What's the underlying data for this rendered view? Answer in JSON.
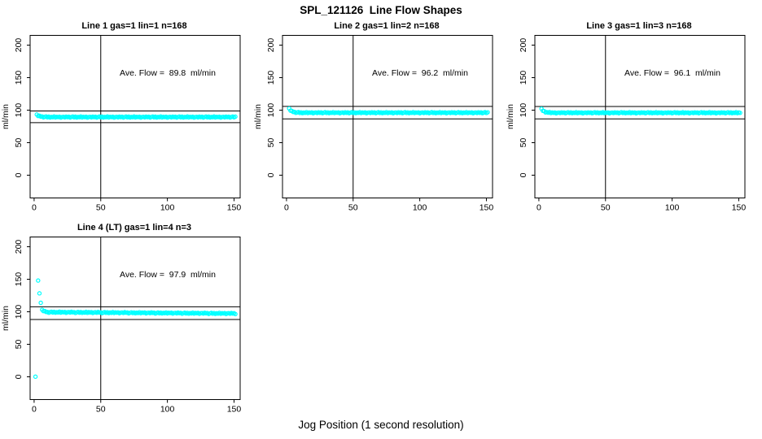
{
  "chart_data": {
    "type": "scatter",
    "title": "SPL_121126  Line Flow Shapes",
    "xlabel": "Jog Position (1 second resolution)",
    "ylabel": "ml/min",
    "x_ticks": [
      0,
      50,
      100,
      150
    ],
    "y_ticks": [
      0,
      50,
      100,
      150,
      200
    ],
    "xlim": [
      -3,
      154.6
    ],
    "ylim": [
      -35,
      215
    ],
    "grid": false,
    "marker_color": "#00FFFF",
    "axis_color": "#000000",
    "vline_x": 50,
    "annotation_pos": {
      "x": 100,
      "y": 155
    },
    "panels": [
      {
        "title": "Line 1 gas=1 lin=1 n=168",
        "ave_flow": 89.8,
        "annotation": "Ave. Flow =  89.8  ml/min",
        "hline_upper": 98.8,
        "hline_lower": 80.8,
        "x_start": 2,
        "x_step": 1,
        "y": [
          93.3,
          91.0,
          91.4,
          90.0,
          90.4,
          88.9,
          89.7,
          90.3,
          89.0,
          90.0,
          88.7,
          89.6,
          89.1,
          90.3,
          88.8,
          89.8,
          89.3,
          89.9,
          88.5,
          89.4,
          89.7,
          88.9,
          90.1,
          89.2,
          89.9,
          88.6,
          89.5,
          90.2,
          89.0,
          90.0,
          88.7,
          89.6,
          89.1,
          90.3,
          88.8,
          89.8,
          89.3,
          89.9,
          88.5,
          89.4,
          89.7,
          88.9,
          90.1,
          89.2,
          89.9,
          88.6,
          89.5,
          90.2,
          89.0,
          90.0,
          88.7,
          89.6,
          89.1,
          90.3,
          88.8,
          89.8,
          89.3,
          89.9,
          88.5,
          89.4,
          89.7,
          88.9,
          90.1,
          89.2,
          89.9,
          88.6,
          89.5,
          90.2,
          89.0,
          90.0,
          88.7,
          89.6,
          89.1,
          90.3,
          88.8,
          89.8,
          89.3,
          89.9,
          88.5,
          89.4,
          89.7,
          88.9,
          90.1,
          89.2,
          89.9,
          88.6,
          89.5,
          90.2,
          89.0,
          90.0,
          88.7,
          89.6,
          89.1,
          90.3,
          88.8,
          89.8,
          89.3,
          89.9,
          88.5,
          89.4,
          89.7,
          88.9,
          90.1,
          89.2,
          89.9,
          88.6,
          89.5,
          90.2,
          89.0,
          90.0,
          88.7,
          89.6,
          89.1,
          90.3,
          88.8,
          89.8,
          89.3,
          89.9,
          88.5,
          89.4,
          89.7,
          88.9,
          90.1,
          89.2,
          89.9,
          88.6,
          89.5,
          90.2,
          89.0,
          90.0,
          88.7,
          89.6,
          89.1,
          90.3,
          88.8,
          89.8,
          89.3,
          89.9,
          88.5,
          89.4,
          89.7,
          88.9,
          90.1,
          89.2,
          89.9,
          88.6,
          89.5,
          90.2,
          89.0,
          90.0
        ]
      },
      {
        "title": "Line 2 gas=1 lin=2 n=168",
        "ave_flow": 96.2,
        "annotation": "Ave. Flow =  96.2  ml/min",
        "hline_upper": 105.8,
        "hline_lower": 86.6,
        "x_start": 2,
        "x_step": 1,
        "y": [
          102.6,
          99.2,
          99.0,
          97.2,
          97.4,
          95.8,
          96.5,
          97.1,
          95.7,
          96.7,
          95.4,
          96.3,
          95.8,
          97.0,
          95.5,
          96.5,
          96.0,
          96.6,
          95.2,
          96.1,
          96.4,
          95.6,
          96.8,
          95.9,
          96.6,
          95.3,
          96.2,
          96.9,
          95.7,
          96.7,
          95.4,
          96.3,
          95.8,
          97.0,
          95.5,
          96.5,
          96.0,
          96.6,
          95.2,
          96.1,
          96.4,
          95.6,
          96.8,
          95.9,
          96.6,
          95.3,
          96.2,
          96.9,
          95.7,
          96.7,
          95.4,
          96.3,
          95.8,
          97.0,
          95.5,
          96.5,
          96.0,
          96.6,
          95.2,
          96.1,
          96.4,
          95.6,
          96.8,
          95.9,
          96.6,
          95.3,
          96.2,
          96.9,
          95.7,
          96.7,
          95.4,
          96.3,
          95.8,
          97.0,
          95.5,
          96.5,
          96.0,
          96.6,
          95.2,
          96.1,
          96.4,
          95.6,
          96.8,
          95.9,
          96.6,
          95.3,
          96.2,
          96.9,
          95.7,
          96.7,
          95.4,
          96.3,
          95.8,
          97.0,
          95.5,
          96.5,
          96.0,
          96.6,
          95.2,
          96.1,
          96.4,
          95.6,
          96.8,
          95.9,
          96.6,
          95.3,
          96.2,
          96.9,
          95.7,
          96.7,
          95.4,
          96.3,
          95.8,
          97.0,
          95.5,
          96.5,
          96.0,
          96.6,
          95.2,
          96.1,
          96.4,
          95.6,
          96.8,
          95.9,
          96.6,
          95.3,
          96.2,
          96.9,
          95.7,
          96.7,
          95.4,
          96.3,
          95.8,
          97.0,
          95.5,
          96.5,
          96.0,
          96.6,
          95.2,
          96.1,
          96.4,
          95.6,
          96.8,
          95.9,
          96.6,
          95.3,
          96.2,
          96.9,
          95.7,
          96.7
        ]
      },
      {
        "title": "Line 3 gas=1 lin=3 n=168",
        "ave_flow": 96.1,
        "annotation": "Ave. Flow =  96.1  ml/min",
        "hline_upper": 105.7,
        "hline_lower": 86.5,
        "x_start": 2,
        "x_step": 1,
        "y": [
          102.2,
          99.0,
          98.6,
          96.5,
          96.9,
          96.1,
          97.1,
          95.5,
          96.4,
          95.9,
          96.5,
          95.1,
          96.0,
          96.3,
          95.5,
          96.7,
          95.8,
          96.5,
          95.2,
          96.1,
          96.8,
          95.6,
          96.6,
          95.3,
          96.2,
          95.7,
          96.9,
          95.4,
          96.4,
          95.9,
          96.5,
          95.1,
          96.0,
          96.3,
          95.5,
          96.7,
          95.8,
          96.5,
          95.2,
          96.1,
          96.8,
          95.6,
          96.6,
          95.3,
          96.2,
          95.7,
          96.9,
          95.4,
          96.4,
          95.9,
          96.5,
          95.1,
          96.0,
          96.3,
          95.5,
          96.7,
          95.8,
          96.5,
          95.2,
          96.1,
          96.8,
          95.6,
          96.6,
          95.3,
          96.2,
          95.7,
          96.9,
          95.4,
          96.4,
          95.9,
          96.5,
          95.1,
          96.0,
          96.3,
          95.5,
          96.7,
          95.8,
          96.5,
          95.2,
          96.1,
          96.8,
          95.6,
          96.6,
          95.3,
          96.2,
          95.7,
          96.9,
          95.4,
          96.4,
          95.9,
          96.5,
          95.1,
          96.0,
          96.3,
          95.5,
          96.7,
          95.8,
          96.5,
          95.2,
          96.1,
          96.8,
          95.6,
          96.6,
          95.3,
          96.2,
          95.7,
          96.9,
          95.4,
          96.4,
          95.9,
          96.5,
          95.1,
          96.0,
          96.3,
          95.5,
          96.7,
          95.8,
          96.5,
          95.2,
          96.1,
          96.8,
          95.6,
          96.6,
          95.3,
          96.2,
          95.7,
          96.9,
          95.4,
          96.4,
          95.9,
          96.5,
          95.1,
          96.0,
          96.3,
          95.5,
          96.7,
          95.8,
          96.5,
          95.2,
          96.1,
          96.8,
          95.6,
          96.6,
          95.3,
          96.2,
          95.7,
          96.9,
          95.4,
          96.4,
          95.9
        ]
      },
      {
        "title": "Line 4 (LT) gas=1 lin=4 n=3",
        "ave_flow": 97.9,
        "annotation": "Ave. Flow =  97.9  ml/min",
        "hline_upper": 107.7,
        "hline_lower": 88.1,
        "outliers": [
          [
            1,
            0.2
          ],
          [
            3,
            148.0
          ],
          [
            4,
            128.3
          ],
          [
            5,
            113.8
          ]
        ],
        "x_start": 6,
        "x_step": 1,
        "y": [
          103.1,
          101.0,
          101.2,
          99.7,
          99.8,
          98.5,
          99.4,
          100.1,
          98.9,
          99.9,
          98.6,
          99.5,
          99.0,
          100.2,
          98.7,
          99.7,
          99.2,
          99.8,
          98.4,
          99.3,
          99.6,
          98.8,
          100.0,
          99.1,
          99.5,
          98.2,
          99.1,
          99.8,
          98.6,
          99.6,
          98.3,
          99.2,
          98.7,
          99.9,
          98.4,
          99.4,
          98.9,
          99.5,
          98.1,
          99.0,
          99.3,
          98.5,
          99.7,
          98.8,
          99.2,
          97.9,
          98.8,
          99.5,
          98.3,
          99.3,
          98.0,
          98.9,
          98.4,
          99.6,
          98.1,
          99.1,
          98.6,
          99.2,
          97.8,
          98.7,
          99.0,
          98.2,
          99.4,
          98.5,
          98.9,
          97.6,
          98.5,
          99.2,
          98.0,
          99.0,
          97.7,
          98.6,
          98.1,
          99.3,
          97.8,
          98.8,
          98.3,
          98.9,
          97.5,
          98.4,
          98.7,
          97.9,
          99.1,
          98.2,
          98.6,
          97.3,
          98.2,
          98.9,
          97.7,
          98.7,
          97.4,
          98.3,
          97.8,
          99.0,
          97.5,
          98.5,
          98.0,
          98.6,
          97.2,
          98.1,
          98.4,
          97.6,
          98.8,
          97.9,
          98.3,
          97.0,
          97.9,
          98.6,
          97.4,
          98.4,
          97.1,
          98.0,
          97.5,
          98.7,
          97.2,
          98.2,
          97.7,
          98.3,
          96.9,
          97.8,
          98.1,
          97.3,
          98.5,
          97.6,
          98.0,
          96.7,
          97.6,
          98.3,
          97.1,
          98.1,
          96.8,
          97.7,
          97.2,
          98.4,
          96.9,
          97.9,
          97.4,
          98.0,
          96.6,
          97.5,
          97.8,
          97.0,
          98.2,
          97.3,
          97.8,
          96.5
        ]
      }
    ]
  }
}
